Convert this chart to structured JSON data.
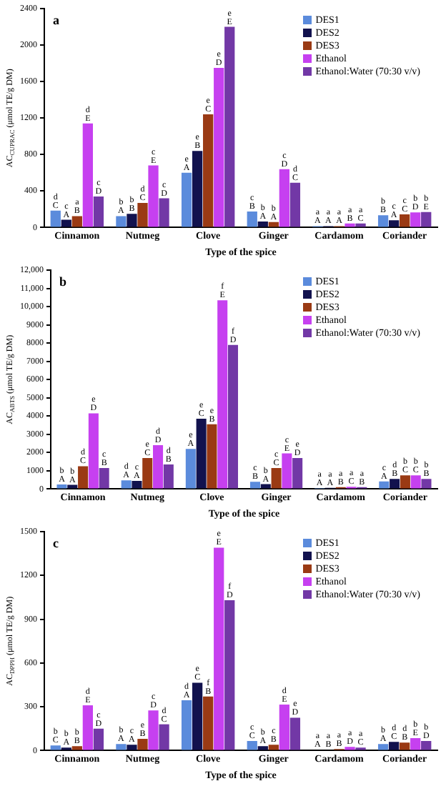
{
  "chart_data": [
    {
      "type": "bar",
      "xlabel": "Type of the spice",
      "ylabel": "AC$_{CUPRAC}$ (μmol TE/g DM)",
      "annotations": [
        "a"
      ],
      "legend": "top right",
      "grid": false,
      "categories": [
        "Cinnamon",
        "Nutmeg",
        "Clove",
        "Ginger",
        "Cardamom",
        "Coriander"
      ],
      "ylim": [
        0,
        2400
      ],
      "yticks": [
        0,
        400,
        800,
        1200,
        1600,
        2000,
        2400
      ],
      "series": [
        {
          "name": "DES1",
          "color": "#5b8bdc",
          "values": [
            185,
            125,
            600,
            175,
            15,
            135
          ],
          "value_labels": [
            "d\nC",
            "b\nA",
            "e\nA",
            "c\nB",
            "a\nA",
            "b\nB"
          ]
        },
        {
          "name": "DES2",
          "color": "#12124e",
          "values": [
            85,
            150,
            840,
            65,
            15,
            80
          ],
          "value_labels": [
            "c\nA",
            "b\nB",
            "e\nB",
            "b\nA",
            "a\nA",
            "c\nA"
          ]
        },
        {
          "name": "DES3",
          "color": "#9a3a14",
          "values": [
            125,
            270,
            1240,
            60,
            15,
            145
          ],
          "value_labels": [
            "a\nB",
            "d\nC",
            "e\nC",
            "b\nA",
            "a\nA",
            "c\nC"
          ]
        },
        {
          "name": "Ethanol",
          "color": "#c640f0",
          "values": [
            1140,
            680,
            1750,
            640,
            45,
            165
          ],
          "value_labels": [
            "d\nE",
            "c\nE",
            "e\nD",
            "c\nD",
            "a\nB",
            "b\nD"
          ]
        },
        {
          "name": "Ethanol:Water (70:30 v/v)",
          "color": "#7238a6",
          "values": [
            340,
            320,
            2200,
            490,
            45,
            170
          ],
          "value_labels": [
            "c\nD",
            "c\nD",
            "e\nE",
            "d\nC",
            "a\nC",
            "b\nE"
          ]
        }
      ]
    },
    {
      "type": "bar",
      "xlabel": "Type of the spice",
      "ylabel": "AC$_{ABTS}$ (μmol TE/g DM)",
      "annotations": [
        "b"
      ],
      "legend": "top right",
      "grid": false,
      "categories": [
        "Cinnamon",
        "Nutmeg",
        "Clove",
        "Ginger",
        "Cardamom",
        "Coriander"
      ],
      "ylim": [
        0,
        12000
      ],
      "yticks": [
        0,
        1000,
        2000,
        3000,
        4000,
        5000,
        6000,
        7000,
        8000,
        9000,
        {
          "value": 10000,
          "label": "10,000"
        },
        {
          "value": 11000,
          "label": "11,000"
        },
        {
          "value": 12000,
          "label": "12,000"
        }
      ],
      "series": [
        {
          "name": "DES1",
          "color": "#5b8bdc",
          "values": [
            250,
            480,
            2200,
            400,
            50,
            420
          ],
          "value_labels": [
            "b\nA",
            "d\nA",
            "e\nA",
            "c\nB",
            "a\nA",
            "c\nA"
          ]
        },
        {
          "name": "DES2",
          "color": "#12124e",
          "values": [
            230,
            450,
            3850,
            270,
            60,
            550
          ],
          "value_labels": [
            "b\nA",
            "c\nA",
            "e\nC",
            "b\nA",
            "a\nA",
            "d\nB"
          ]
        },
        {
          "name": "DES3",
          "color": "#9a3a14",
          "values": [
            1250,
            1700,
            3550,
            1150,
            100,
            750
          ],
          "value_labels": [
            "d\nC",
            "e\nC",
            "e\nB",
            "c\nC",
            "a\nB",
            "b\nC"
          ]
        },
        {
          "name": "Ethanol",
          "color": "#c640f0",
          "values": [
            4150,
            2400,
            10350,
            1950,
            120,
            750
          ],
          "value_labels": [
            "e\nD",
            "d\nD",
            "f\nE",
            "c\nE",
            "a\nC",
            "b\nC"
          ]
        },
        {
          "name": "Ethanol:Water (70:30 v/v)",
          "color": "#7238a6",
          "values": [
            1150,
            1350,
            7900,
            1700,
            100,
            550
          ],
          "value_labels": [
            "c\nB",
            "d\nB",
            "f\nD",
            "e\nD",
            "a\nB",
            "b\nB"
          ]
        }
      ]
    },
    {
      "type": "bar",
      "xlabel": "Type of the spice",
      "ylabel": "AC$_{DPPH}$ (μmol TE/g DM)",
      "annotations": [
        "c"
      ],
      "legend": "top right",
      "grid": false,
      "categories": [
        "Cinnamon",
        "Nutmeg",
        "Clove",
        "Ginger",
        "Cardamom",
        "Coriander"
      ],
      "ylim": [
        0,
        1500
      ],
      "yticks": [
        0,
        300,
        600,
        900,
        1200,
        1500
      ],
      "series": [
        {
          "name": "DES1",
          "color": "#5b8bdc",
          "values": [
            35,
            45,
            345,
            65,
            5,
            45
          ],
          "value_labels": [
            "b\nC",
            "b\nA",
            "d\nA",
            "c\nC",
            "a\nA",
            "b\nA"
          ]
        },
        {
          "name": "DES2",
          "color": "#12124e",
          "values": [
            20,
            40,
            465,
            30,
            5,
            60
          ],
          "value_labels": [
            "b\nA",
            "c\nA",
            "e\nC",
            "b\nA",
            "a\nB",
            "d\nC"
          ]
        },
        {
          "name": "DES3",
          "color": "#9a3a14",
          "values": [
            30,
            80,
            370,
            40,
            10,
            55
          ],
          "value_labels": [
            "b\nB",
            "e\nB",
            "f\nB",
            "c\nB",
            "a\nB",
            "d\nB"
          ]
        },
        {
          "name": "Ethanol",
          "color": "#c640f0",
          "values": [
            310,
            275,
            1390,
            315,
            25,
            85
          ],
          "value_labels": [
            "d\nE",
            "c\nD",
            "e\nE",
            "d\nE",
            "a\nD",
            "b\nE"
          ]
        },
        {
          "name": "Ethanol:Water (70:30 v/v)",
          "color": "#7238a6",
          "values": [
            150,
            180,
            1030,
            225,
            20,
            65
          ],
          "value_labels": [
            "c\nD",
            "d\nC",
            "f\nD",
            "e\nD",
            "a\nC",
            "b\nD"
          ]
        }
      ]
    }
  ]
}
